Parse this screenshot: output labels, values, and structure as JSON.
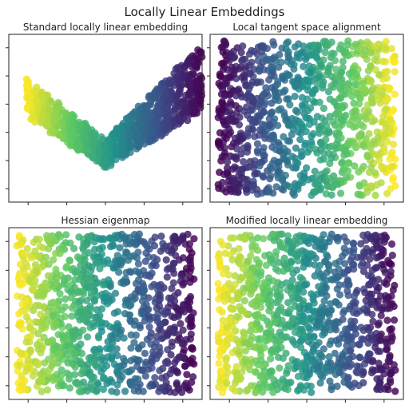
{
  "figure": {
    "suptitle": "Locally Linear Embeddings",
    "colormap": [
      "#440154",
      "#3b528b",
      "#21918c",
      "#5ec962",
      "#fde725"
    ]
  },
  "chart_data": [
    {
      "type": "scatter",
      "title": "Standard locally linear embedding",
      "xlabel": "",
      "ylabel": "",
      "shape": "v-curve",
      "color_direction": "right-to-left",
      "x_tick_labels_shown": false,
      "y_tick_labels_shown": false,
      "point_count": 1000
    },
    {
      "type": "scatter",
      "title": "Local tangent space alignment",
      "xlabel": "",
      "ylabel": "",
      "shape": "square",
      "color_direction": "left-to-right",
      "x_tick_labels_shown": false,
      "y_tick_labels_shown": false,
      "point_count": 1000
    },
    {
      "type": "scatter",
      "title": "Hessian eigenmap",
      "xlabel": "",
      "ylabel": "",
      "shape": "square",
      "color_direction": "right-to-left",
      "x_tick_labels_shown": false,
      "y_tick_labels_shown": false,
      "point_count": 1000
    },
    {
      "type": "scatter",
      "title": "Modified locally linear embedding",
      "xlabel": "",
      "ylabel": "",
      "shape": "square",
      "color_direction": "right-to-left",
      "x_tick_labels_shown": false,
      "y_tick_labels_shown": false,
      "point_count": 1000
    }
  ]
}
